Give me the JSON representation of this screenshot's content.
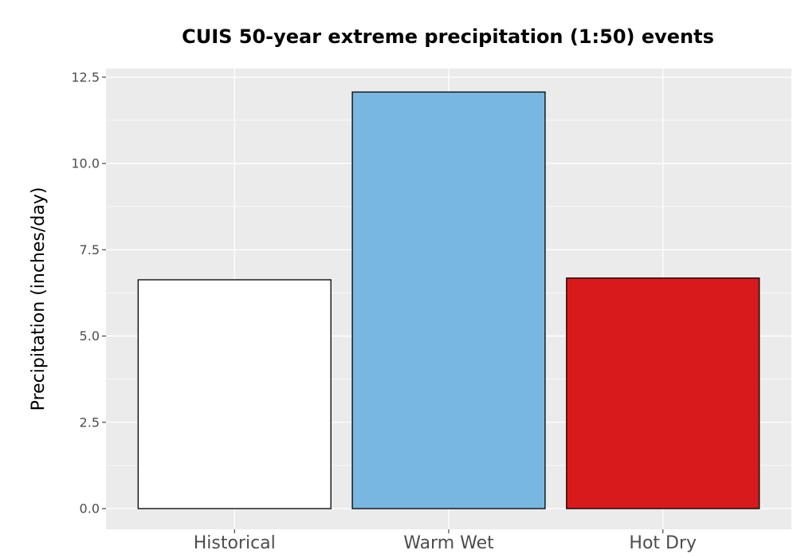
{
  "chart_data": {
    "type": "bar",
    "title": "CUIS 50-year extreme precipitation (1:50) events",
    "xlabel": "",
    "ylabel": "Precipitation (inches/day)",
    "categories": [
      "Historical",
      "Warm Wet",
      "Hot Dry"
    ],
    "values": [
      6.63,
      12.07,
      6.68
    ],
    "colors": [
      "#ffffff",
      "#78b7e1",
      "#d91a1c"
    ],
    "ylim": [
      -0.6,
      12.75
    ],
    "yticks": [
      0,
      2.5,
      5,
      7.5,
      10,
      12.5
    ],
    "ytick_labels": [
      "0.0",
      "2.5",
      "5.0",
      "7.5",
      "10.0",
      "12.5"
    ],
    "panel_background": "#ebebeb",
    "grid": true,
    "legend": "none"
  }
}
